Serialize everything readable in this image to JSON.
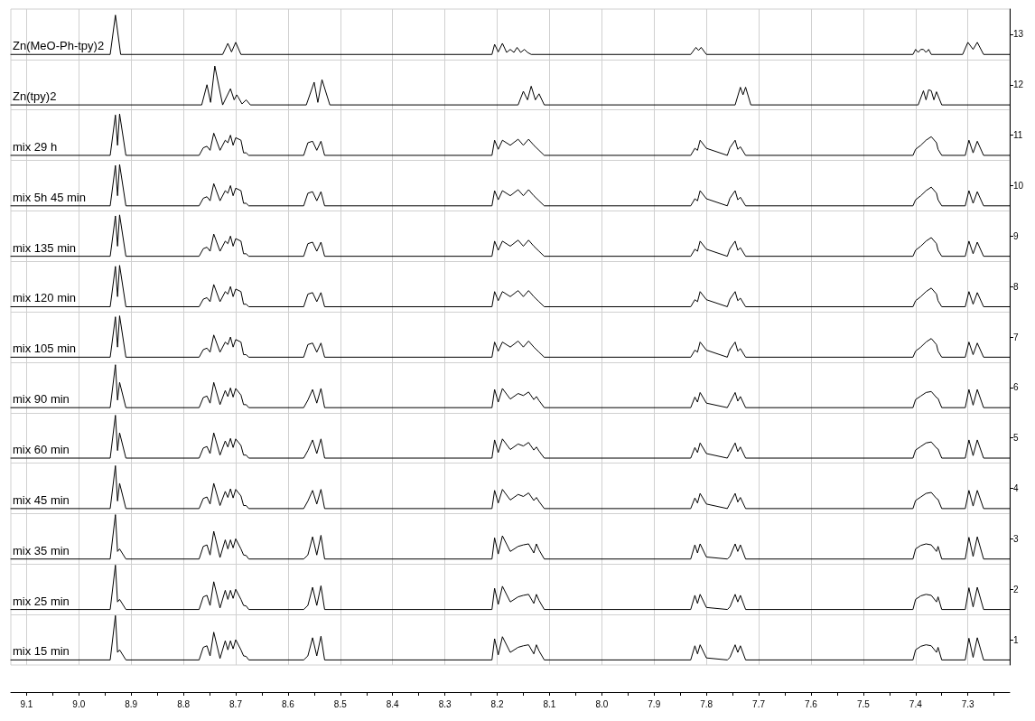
{
  "chart_data": {
    "type": "line",
    "marker": "none",
    "line_style": "solid",
    "grid": "x",
    "legend": false,
    "xlim": [
      9.13,
      7.22
    ],
    "xticks": [
      9.1,
      {
        "value": 9.05,
        "label": null
      },
      {
        "value": 9,
        "label": "9.0"
      },
      {
        "value": 8.95,
        "label": null
      },
      8.9,
      {
        "value": 8.85,
        "label": null
      },
      8.8,
      {
        "value": 8.75,
        "label": null
      },
      8.7,
      {
        "value": 8.65,
        "label": null
      },
      8.6,
      {
        "value": 8.55,
        "label": null
      },
      8.5,
      {
        "value": 8.45,
        "label": null
      },
      8.4,
      {
        "value": 8.35,
        "label": null
      },
      8.3,
      {
        "value": 8.25,
        "label": null
      },
      8.2,
      {
        "value": 8.15,
        "label": null
      },
      8.1,
      {
        "value": 8.05,
        "label": null
      },
      {
        "value": 8,
        "label": "8.0"
      },
      {
        "value": 7.95,
        "label": null
      },
      7.9,
      {
        "value": 7.85,
        "label": null
      },
      7.8,
      {
        "value": 7.75,
        "label": null
      },
      7.7,
      {
        "value": 7.65,
        "label": null
      },
      7.6,
      {
        "value": 7.55,
        "label": null
      },
      7.5,
      {
        "value": 7.45,
        "label": null
      },
      7.4,
      {
        "value": 7.35,
        "label": null
      },
      7.3,
      {
        "value": 7.25,
        "label": null
      }
    ],
    "ylim": [
      0.5,
      13.5
    ],
    "yticks": [
      1,
      2,
      3,
      4,
      5,
      6,
      7,
      8,
      9,
      10,
      11,
      12,
      13
    ],
    "ref_lines": [
      {
        "axis": "y",
        "value": 1.5,
        "label": null,
        "color": "#d0d0d0"
      },
      {
        "axis": "y",
        "value": 2.5,
        "label": null,
        "color": "#d0d0d0"
      },
      {
        "axis": "y",
        "value": 3.5,
        "label": null,
        "color": "#d0d0d0"
      },
      {
        "axis": "y",
        "value": 4.5,
        "label": null,
        "color": "#d0d0d0"
      },
      {
        "axis": "y",
        "value": 5.5,
        "label": null,
        "color": "#d0d0d0"
      },
      {
        "axis": "y",
        "value": 6.5,
        "label": null,
        "color": "#d0d0d0"
      },
      {
        "axis": "y",
        "value": 7.5,
        "label": null,
        "color": "#d0d0d0"
      },
      {
        "axis": "y",
        "value": 8.5,
        "label": null,
        "color": "#d0d0d0"
      },
      {
        "axis": "y",
        "value": 9.5,
        "label": null,
        "color": "#d0d0d0"
      },
      {
        "axis": "y",
        "value": 10.5,
        "label": null,
        "color": "#d0d0d0"
      },
      {
        "axis": "y",
        "value": 11.5,
        "label": null,
        "color": "#d0d0d0"
      },
      {
        "axis": "y",
        "value": 12.5,
        "label": null,
        "color": "#d0d0d0"
      }
    ],
    "series": [
      {
        "name": "Zn(MeO-Ph-tpy)2",
        "color": "#000000",
        "x": [
          9.13,
          8.94,
          8.93,
          8.92,
          8.725,
          8.715,
          8.708,
          8.7,
          8.69,
          8.21,
          8.205,
          8.198,
          8.19,
          8.182,
          8.175,
          8.168,
          8.162,
          8.155,
          8.148,
          8.142,
          8.135,
          7.83,
          7.82,
          7.815,
          7.81,
          7.8,
          7.405,
          7.4,
          7.395,
          7.39,
          7.385,
          7.38,
          7.375,
          7.37,
          7.31,
          7.3,
          7.29,
          7.282,
          7.27,
          7.22
        ],
        "values": [
          12.6,
          12.6,
          13.38,
          12.6,
          12.6,
          12.82,
          12.65,
          12.84,
          12.6,
          12.6,
          12.8,
          12.65,
          12.82,
          12.64,
          12.7,
          12.64,
          12.74,
          12.64,
          12.7,
          12.64,
          12.6,
          12.6,
          12.74,
          12.68,
          12.74,
          12.6,
          12.6,
          12.7,
          12.64,
          12.7,
          12.7,
          12.64,
          12.7,
          12.6,
          12.6,
          12.84,
          12.7,
          12.84,
          12.6,
          12.6
        ]
      },
      {
        "name": "Zn(tpy)2",
        "color": "#000000",
        "x": [
          9.13,
          8.765,
          8.755,
          8.748,
          8.74,
          8.725,
          8.71,
          8.703,
          8.698,
          8.695,
          8.688,
          8.68,
          8.672,
          8.565,
          8.55,
          8.543,
          8.535,
          8.52,
          8.16,
          8.15,
          8.142,
          8.135,
          8.127,
          8.12,
          8.11,
          7.745,
          7.735,
          7.73,
          7.725,
          7.715,
          7.395,
          7.385,
          7.38,
          7.375,
          7.37,
          7.365,
          7.36,
          7.35,
          7.22
        ],
        "values": [
          11.6,
          11.6,
          12.0,
          11.65,
          12.37,
          11.6,
          11.92,
          11.7,
          11.8,
          11.75,
          11.62,
          11.7,
          11.6,
          11.6,
          12.05,
          11.65,
          12.1,
          11.6,
          11.6,
          11.87,
          11.7,
          11.97,
          11.7,
          11.82,
          11.6,
          11.6,
          11.95,
          11.8,
          11.95,
          11.6,
          11.6,
          11.88,
          11.7,
          11.9,
          11.88,
          11.7,
          11.86,
          11.6,
          11.6
        ]
      },
      {
        "name": "mix 29 h",
        "color": "#000000",
        "x": [
          9.13,
          8.94,
          8.93,
          8.926,
          8.922,
          8.91,
          8.77,
          8.762,
          8.755,
          8.749,
          8.742,
          8.73,
          8.72,
          8.715,
          8.71,
          8.705,
          8.7,
          8.69,
          8.685,
          8.68,
          8.675,
          8.57,
          8.562,
          8.553,
          8.545,
          8.537,
          8.53,
          8.21,
          8.205,
          8.198,
          8.19,
          8.175,
          8.16,
          8.15,
          8.14,
          8.13,
          8.125,
          8.12,
          8.11,
          7.83,
          7.822,
          7.817,
          7.812,
          7.8,
          7.76,
          7.755,
          7.745,
          7.74,
          7.735,
          7.725,
          7.405,
          7.4,
          7.39,
          7.38,
          7.37,
          7.36,
          7.357,
          7.35,
          7.305,
          7.298,
          7.29,
          7.282,
          7.27,
          7.22
        ],
        "values": [
          10.6,
          10.6,
          11.4,
          10.8,
          11.42,
          10.6,
          10.6,
          10.75,
          10.78,
          10.7,
          11.04,
          10.7,
          10.9,
          10.85,
          11.0,
          10.8,
          10.95,
          10.9,
          10.65,
          10.65,
          10.6,
          10.6,
          10.85,
          10.88,
          10.7,
          10.88,
          10.6,
          10.6,
          10.9,
          10.72,
          10.9,
          10.8,
          10.92,
          10.8,
          10.92,
          10.8,
          10.75,
          10.7,
          10.6,
          10.6,
          10.74,
          10.7,
          10.9,
          10.74,
          10.6,
          10.75,
          10.9,
          10.72,
          10.77,
          10.6,
          10.6,
          10.72,
          10.8,
          10.9,
          10.97,
          10.85,
          10.72,
          10.6,
          10.6,
          10.9,
          10.65,
          10.88,
          10.6,
          10.6
        ]
      },
      {
        "name": "mix 5h 45 min",
        "color": "#000000",
        "x": [
          9.13,
          8.94,
          8.93,
          8.926,
          8.922,
          8.91,
          8.77,
          8.762,
          8.755,
          8.749,
          8.742,
          8.73,
          8.72,
          8.715,
          8.71,
          8.705,
          8.7,
          8.69,
          8.685,
          8.68,
          8.675,
          8.57,
          8.562,
          8.553,
          8.545,
          8.537,
          8.53,
          8.21,
          8.205,
          8.198,
          8.19,
          8.175,
          8.16,
          8.15,
          8.14,
          8.13,
          8.125,
          8.12,
          8.11,
          7.83,
          7.822,
          7.817,
          7.812,
          7.8,
          7.76,
          7.755,
          7.745,
          7.74,
          7.735,
          7.725,
          7.405,
          7.4,
          7.39,
          7.38,
          7.37,
          7.36,
          7.357,
          7.35,
          7.305,
          7.298,
          7.29,
          7.282,
          7.27,
          7.22
        ],
        "values": [
          9.6,
          9.6,
          10.4,
          9.8,
          10.42,
          9.6,
          9.6,
          9.75,
          9.78,
          9.7,
          10.04,
          9.7,
          9.9,
          9.85,
          10.0,
          9.8,
          9.95,
          9.9,
          9.65,
          9.65,
          9.6,
          9.6,
          9.85,
          9.88,
          9.7,
          9.88,
          9.6,
          9.6,
          9.9,
          9.72,
          9.9,
          9.8,
          9.92,
          9.8,
          9.92,
          9.8,
          9.75,
          9.7,
          9.6,
          9.6,
          9.74,
          9.7,
          9.9,
          9.74,
          9.6,
          9.75,
          9.9,
          9.72,
          9.77,
          9.6,
          9.6,
          9.72,
          9.8,
          9.9,
          9.97,
          9.85,
          9.72,
          9.6,
          9.6,
          9.9,
          9.65,
          9.88,
          9.6,
          9.6
        ]
      },
      {
        "name": "mix 135 min",
        "color": "#000000",
        "x": [
          9.13,
          8.94,
          8.93,
          8.926,
          8.922,
          8.91,
          8.77,
          8.762,
          8.755,
          8.749,
          8.742,
          8.73,
          8.72,
          8.715,
          8.71,
          8.705,
          8.7,
          8.69,
          8.685,
          8.68,
          8.675,
          8.57,
          8.562,
          8.553,
          8.545,
          8.537,
          8.53,
          8.21,
          8.205,
          8.198,
          8.19,
          8.175,
          8.16,
          8.15,
          8.14,
          8.13,
          8.125,
          8.12,
          8.11,
          7.83,
          7.822,
          7.817,
          7.812,
          7.8,
          7.76,
          7.755,
          7.745,
          7.74,
          7.735,
          7.725,
          7.405,
          7.4,
          7.39,
          7.38,
          7.37,
          7.36,
          7.357,
          7.35,
          7.305,
          7.298,
          7.29,
          7.282,
          7.27,
          7.22
        ],
        "values": [
          8.6,
          8.6,
          9.4,
          8.8,
          9.42,
          8.6,
          8.6,
          8.75,
          8.78,
          8.7,
          9.04,
          8.7,
          8.9,
          8.85,
          9.0,
          8.8,
          8.95,
          8.9,
          8.65,
          8.65,
          8.6,
          8.6,
          8.85,
          8.88,
          8.7,
          8.88,
          8.6,
          8.6,
          8.9,
          8.72,
          8.9,
          8.8,
          8.92,
          8.8,
          8.92,
          8.8,
          8.75,
          8.7,
          8.6,
          8.6,
          8.74,
          8.7,
          8.9,
          8.74,
          8.6,
          8.75,
          8.9,
          8.72,
          8.77,
          8.6,
          8.6,
          8.72,
          8.8,
          8.9,
          8.97,
          8.85,
          8.72,
          8.6,
          8.6,
          8.9,
          8.65,
          8.88,
          8.6,
          8.6
        ]
      },
      {
        "name": "mix 120 min",
        "color": "#000000",
        "x": [
          9.13,
          8.94,
          8.93,
          8.926,
          8.922,
          8.91,
          8.77,
          8.762,
          8.755,
          8.749,
          8.742,
          8.73,
          8.72,
          8.715,
          8.71,
          8.705,
          8.7,
          8.69,
          8.685,
          8.68,
          8.675,
          8.57,
          8.562,
          8.553,
          8.545,
          8.537,
          8.53,
          8.21,
          8.205,
          8.198,
          8.19,
          8.175,
          8.16,
          8.15,
          8.14,
          8.13,
          8.125,
          8.12,
          8.11,
          7.83,
          7.822,
          7.817,
          7.812,
          7.8,
          7.76,
          7.755,
          7.745,
          7.74,
          7.735,
          7.725,
          7.405,
          7.4,
          7.39,
          7.38,
          7.37,
          7.36,
          7.357,
          7.35,
          7.305,
          7.298,
          7.29,
          7.282,
          7.27,
          7.22
        ],
        "values": [
          7.6,
          7.6,
          8.4,
          7.8,
          8.42,
          7.6,
          7.6,
          7.75,
          7.78,
          7.7,
          8.04,
          7.7,
          7.9,
          7.85,
          8.0,
          7.8,
          7.95,
          7.9,
          7.65,
          7.65,
          7.6,
          7.6,
          7.85,
          7.88,
          7.7,
          7.88,
          7.6,
          7.6,
          7.9,
          7.72,
          7.9,
          7.8,
          7.92,
          7.8,
          7.92,
          7.8,
          7.75,
          7.7,
          7.6,
          7.6,
          7.74,
          7.7,
          7.9,
          7.74,
          7.6,
          7.75,
          7.9,
          7.72,
          7.77,
          7.6,
          7.6,
          7.72,
          7.8,
          7.9,
          7.97,
          7.85,
          7.72,
          7.6,
          7.6,
          7.9,
          7.65,
          7.88,
          7.6,
          7.6
        ]
      },
      {
        "name": "mix 105 min",
        "color": "#000000",
        "x": [
          9.13,
          8.94,
          8.93,
          8.926,
          8.922,
          8.91,
          8.77,
          8.762,
          8.755,
          8.749,
          8.742,
          8.73,
          8.72,
          8.715,
          8.71,
          8.705,
          8.7,
          8.69,
          8.685,
          8.68,
          8.675,
          8.57,
          8.562,
          8.553,
          8.545,
          8.537,
          8.53,
          8.21,
          8.205,
          8.198,
          8.19,
          8.175,
          8.16,
          8.15,
          8.14,
          8.13,
          8.125,
          8.12,
          8.11,
          7.83,
          7.822,
          7.817,
          7.812,
          7.8,
          7.76,
          7.755,
          7.745,
          7.74,
          7.735,
          7.725,
          7.405,
          7.4,
          7.39,
          7.38,
          7.37,
          7.36,
          7.357,
          7.35,
          7.305,
          7.298,
          7.29,
          7.282,
          7.27,
          7.22
        ],
        "values": [
          6.6,
          6.6,
          7.4,
          6.8,
          7.42,
          6.6,
          6.6,
          6.75,
          6.78,
          6.7,
          7.04,
          6.7,
          6.9,
          6.85,
          7.0,
          6.8,
          6.95,
          6.9,
          6.65,
          6.65,
          6.6,
          6.6,
          6.85,
          6.88,
          6.7,
          6.88,
          6.6,
          6.6,
          6.9,
          6.72,
          6.9,
          6.8,
          6.92,
          6.8,
          6.92,
          6.8,
          6.75,
          6.7,
          6.6,
          6.6,
          6.74,
          6.7,
          6.9,
          6.74,
          6.6,
          6.75,
          6.9,
          6.72,
          6.77,
          6.6,
          6.6,
          6.72,
          6.8,
          6.9,
          6.97,
          6.85,
          6.72,
          6.6,
          6.6,
          6.9,
          6.65,
          6.88,
          6.6,
          6.6
        ]
      },
      {
        "name": "mix 90 min",
        "color": "#000000",
        "x": [
          9.13,
          8.94,
          8.93,
          8.926,
          8.922,
          8.91,
          8.77,
          8.762,
          8.755,
          8.749,
          8.742,
          8.73,
          8.72,
          8.715,
          8.71,
          8.705,
          8.7,
          8.69,
          8.685,
          8.68,
          8.675,
          8.57,
          8.562,
          8.553,
          8.545,
          8.537,
          8.53,
          8.21,
          8.205,
          8.198,
          8.19,
          8.175,
          8.16,
          8.15,
          8.14,
          8.13,
          8.125,
          8.12,
          8.11,
          7.83,
          7.822,
          7.817,
          7.812,
          7.8,
          7.76,
          7.755,
          7.745,
          7.74,
          7.735,
          7.725,
          7.405,
          7.4,
          7.39,
          7.38,
          7.37,
          7.36,
          7.357,
          7.35,
          7.305,
          7.298,
          7.29,
          7.282,
          7.27,
          7.22
        ],
        "values": [
          5.6,
          5.6,
          6.45,
          5.75,
          6.1,
          5.6,
          5.6,
          5.8,
          5.83,
          5.69,
          6.1,
          5.66,
          5.94,
          5.82,
          5.99,
          5.81,
          5.98,
          5.85,
          5.66,
          5.66,
          5.6,
          5.6,
          5.75,
          5.96,
          5.69,
          5.98,
          5.6,
          5.6,
          5.96,
          5.71,
          5.98,
          5.77,
          5.88,
          5.84,
          5.91,
          5.76,
          5.82,
          5.74,
          5.6,
          5.6,
          5.81,
          5.71,
          5.9,
          5.69,
          5.6,
          5.7,
          5.9,
          5.73,
          5.82,
          5.6,
          5.6,
          5.76,
          5.83,
          5.9,
          5.92,
          5.8,
          5.78,
          5.6,
          5.6,
          5.96,
          5.65,
          5.96,
          5.6,
          5.6
        ]
      },
      {
        "name": "mix 60 min",
        "color": "#000000",
        "x": [
          9.13,
          8.94,
          8.93,
          8.926,
          8.922,
          8.91,
          8.77,
          8.762,
          8.755,
          8.749,
          8.742,
          8.73,
          8.72,
          8.715,
          8.71,
          8.705,
          8.7,
          8.69,
          8.685,
          8.68,
          8.675,
          8.57,
          8.562,
          8.553,
          8.545,
          8.537,
          8.53,
          8.21,
          8.205,
          8.198,
          8.19,
          8.175,
          8.16,
          8.15,
          8.14,
          8.13,
          8.125,
          8.12,
          8.11,
          7.83,
          7.822,
          7.817,
          7.812,
          7.8,
          7.76,
          7.755,
          7.745,
          7.74,
          7.735,
          7.725,
          7.405,
          7.4,
          7.39,
          7.38,
          7.37,
          7.36,
          7.357,
          7.35,
          7.305,
          7.298,
          7.29,
          7.282,
          7.27,
          7.22
        ],
        "values": [
          4.6,
          4.6,
          5.45,
          4.75,
          5.1,
          4.6,
          4.6,
          4.8,
          4.83,
          4.69,
          5.1,
          4.66,
          4.94,
          4.82,
          4.99,
          4.81,
          4.98,
          4.85,
          4.66,
          4.66,
          4.6,
          4.6,
          4.75,
          4.96,
          4.69,
          4.98,
          4.6,
          4.6,
          4.96,
          4.71,
          4.98,
          4.77,
          4.88,
          4.84,
          4.91,
          4.76,
          4.82,
          4.74,
          4.6,
          4.6,
          4.81,
          4.71,
          4.9,
          4.69,
          4.6,
          4.7,
          4.9,
          4.73,
          4.82,
          4.6,
          4.6,
          4.76,
          4.83,
          4.9,
          4.92,
          4.8,
          4.78,
          4.6,
          4.6,
          4.96,
          4.65,
          4.96,
          4.6,
          4.6
        ]
      },
      {
        "name": "mix 45 min",
        "color": "#000000",
        "x": [
          9.13,
          8.94,
          8.93,
          8.926,
          8.922,
          8.91,
          8.77,
          8.762,
          8.755,
          8.749,
          8.742,
          8.73,
          8.72,
          8.715,
          8.71,
          8.705,
          8.7,
          8.69,
          8.685,
          8.68,
          8.675,
          8.57,
          8.562,
          8.553,
          8.545,
          8.537,
          8.53,
          8.21,
          8.205,
          8.198,
          8.19,
          8.175,
          8.16,
          8.15,
          8.14,
          8.13,
          8.125,
          8.12,
          8.11,
          7.83,
          7.822,
          7.817,
          7.812,
          7.8,
          7.76,
          7.755,
          7.745,
          7.74,
          7.735,
          7.725,
          7.405,
          7.4,
          7.39,
          7.38,
          7.37,
          7.36,
          7.357,
          7.35,
          7.305,
          7.298,
          7.29,
          7.282,
          7.27,
          7.22
        ],
        "values": [
          3.6,
          3.6,
          4.45,
          3.75,
          4.1,
          3.6,
          3.6,
          3.8,
          3.83,
          3.69,
          4.1,
          3.66,
          3.94,
          3.82,
          3.99,
          3.81,
          3.98,
          3.85,
          3.66,
          3.66,
          3.6,
          3.6,
          3.75,
          3.96,
          3.69,
          3.98,
          3.6,
          3.6,
          3.96,
          3.71,
          3.98,
          3.77,
          3.88,
          3.84,
          3.91,
          3.76,
          3.82,
          3.74,
          3.6,
          3.6,
          3.81,
          3.71,
          3.9,
          3.69,
          3.6,
          3.7,
          3.9,
          3.73,
          3.82,
          3.6,
          3.6,
          3.76,
          3.83,
          3.9,
          3.92,
          3.8,
          3.78,
          3.6,
          3.6,
          3.96,
          3.65,
          3.96,
          3.6,
          3.6
        ]
      },
      {
        "name": "mix 35 min",
        "color": "#000000",
        "x": [
          9.13,
          8.94,
          8.93,
          8.926,
          8.922,
          8.91,
          8.77,
          8.762,
          8.755,
          8.749,
          8.742,
          8.73,
          8.72,
          8.715,
          8.71,
          8.705,
          8.7,
          8.69,
          8.685,
          8.68,
          8.675,
          8.57,
          8.562,
          8.553,
          8.545,
          8.537,
          8.53,
          8.21,
          8.205,
          8.198,
          8.19,
          8.175,
          8.16,
          8.15,
          8.14,
          8.13,
          8.125,
          8.12,
          8.11,
          7.83,
          7.822,
          7.817,
          7.812,
          7.8,
          7.76,
          7.755,
          7.745,
          7.74,
          7.735,
          7.725,
          7.405,
          7.4,
          7.39,
          7.38,
          7.37,
          7.36,
          7.357,
          7.35,
          7.305,
          7.298,
          7.29,
          7.282,
          7.27,
          7.22
        ],
        "values": [
          2.6,
          2.6,
          3.48,
          2.75,
          2.8,
          2.6,
          2.6,
          2.85,
          2.88,
          2.68,
          3.15,
          2.63,
          2.98,
          2.8,
          2.98,
          2.82,
          3.0,
          2.8,
          2.68,
          2.67,
          2.6,
          2.6,
          2.68,
          3.04,
          2.68,
          3.07,
          2.6,
          2.6,
          3.02,
          2.7,
          3.06,
          2.75,
          2.85,
          2.88,
          2.9,
          2.72,
          2.9,
          2.78,
          2.6,
          2.6,
          2.88,
          2.72,
          2.9,
          2.64,
          2.6,
          2.65,
          2.9,
          2.75,
          2.88,
          2.6,
          2.6,
          2.8,
          2.87,
          2.9,
          2.88,
          2.75,
          2.85,
          2.6,
          2.6,
          3.03,
          2.65,
          3.04,
          2.6,
          2.6
        ]
      },
      {
        "name": "mix 25 min",
        "color": "#000000",
        "x": [
          9.13,
          8.94,
          8.93,
          8.926,
          8.922,
          8.91,
          8.77,
          8.762,
          8.755,
          8.749,
          8.742,
          8.73,
          8.72,
          8.715,
          8.71,
          8.705,
          8.7,
          8.69,
          8.685,
          8.68,
          8.675,
          8.57,
          8.562,
          8.553,
          8.545,
          8.537,
          8.53,
          8.21,
          8.205,
          8.198,
          8.19,
          8.175,
          8.16,
          8.15,
          8.14,
          8.13,
          8.125,
          8.12,
          8.11,
          7.83,
          7.822,
          7.817,
          7.812,
          7.8,
          7.76,
          7.755,
          7.745,
          7.74,
          7.735,
          7.725,
          7.405,
          7.4,
          7.39,
          7.38,
          7.37,
          7.36,
          7.357,
          7.35,
          7.305,
          7.298,
          7.29,
          7.282,
          7.27,
          7.22
        ],
        "values": [
          1.6,
          1.6,
          2.48,
          1.75,
          1.8,
          1.6,
          1.6,
          1.85,
          1.88,
          1.68,
          2.15,
          1.63,
          1.98,
          1.8,
          1.98,
          1.82,
          2.0,
          1.8,
          1.68,
          1.67,
          1.6,
          1.6,
          1.68,
          2.04,
          1.68,
          2.07,
          1.6,
          1.6,
          2.02,
          1.7,
          2.06,
          1.75,
          1.85,
          1.88,
          1.9,
          1.72,
          1.9,
          1.78,
          1.6,
          1.6,
          1.88,
          1.72,
          1.9,
          1.64,
          1.6,
          1.65,
          1.9,
          1.75,
          1.88,
          1.6,
          1.6,
          1.8,
          1.87,
          1.9,
          1.88,
          1.75,
          1.85,
          1.6,
          1.6,
          2.03,
          1.65,
          2.04,
          1.6,
          1.6
        ]
      },
      {
        "name": "mix 15 min",
        "color": "#000000",
        "x": [
          9.13,
          8.94,
          8.93,
          8.926,
          8.922,
          8.91,
          8.77,
          8.762,
          8.755,
          8.749,
          8.742,
          8.73,
          8.72,
          8.715,
          8.71,
          8.705,
          8.7,
          8.69,
          8.685,
          8.68,
          8.675,
          8.57,
          8.562,
          8.553,
          8.545,
          8.537,
          8.53,
          8.21,
          8.205,
          8.198,
          8.19,
          8.175,
          8.16,
          8.15,
          8.14,
          8.13,
          8.125,
          8.12,
          8.11,
          7.83,
          7.822,
          7.817,
          7.812,
          7.8,
          7.76,
          7.755,
          7.745,
          7.74,
          7.735,
          7.725,
          7.405,
          7.4,
          7.39,
          7.38,
          7.37,
          7.36,
          7.357,
          7.35,
          7.305,
          7.298,
          7.29,
          7.282,
          7.27,
          7.22
        ],
        "values": [
          0.6,
          0.6,
          1.48,
          0.75,
          0.8,
          0.6,
          0.6,
          0.85,
          0.88,
          0.68,
          1.15,
          0.63,
          0.98,
          0.8,
          0.98,
          0.82,
          1.0,
          0.8,
          0.68,
          0.67,
          0.6,
          0.6,
          0.68,
          1.04,
          0.68,
          1.07,
          0.6,
          0.6,
          1.02,
          0.7,
          1.06,
          0.75,
          0.85,
          0.88,
          0.9,
          0.72,
          0.9,
          0.78,
          0.6,
          0.6,
          0.88,
          0.72,
          0.9,
          0.64,
          0.6,
          0.65,
          0.9,
          0.75,
          0.88,
          0.6,
          0.6,
          0.8,
          0.87,
          0.9,
          0.88,
          0.75,
          0.85,
          0.6,
          0.6,
          1.03,
          0.65,
          1.04,
          0.6,
          0.6
        ]
      }
    ]
  }
}
